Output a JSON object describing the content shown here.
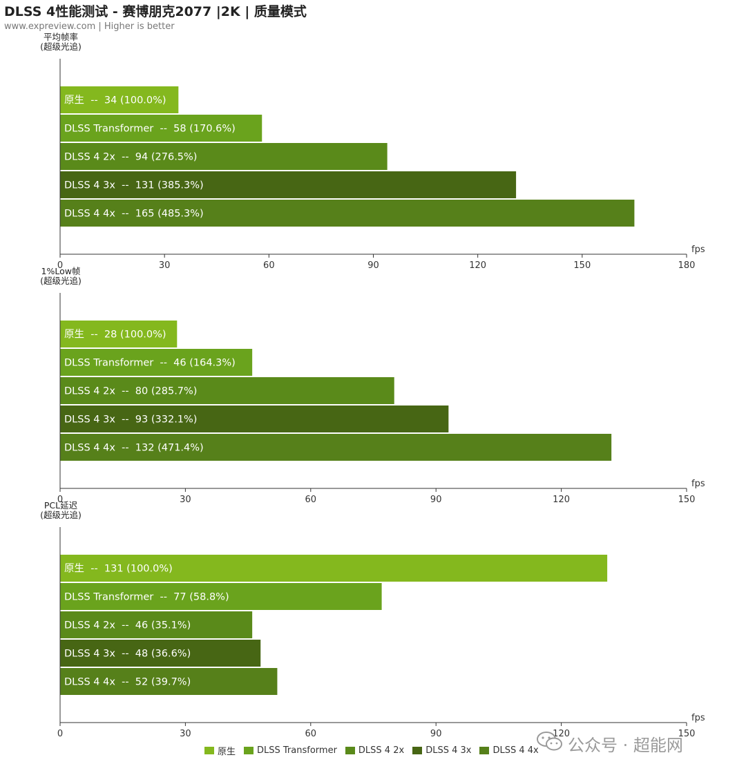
{
  "title": "DLSS 4性能测试 - 赛博朋克2077 |2K | 质量模式",
  "subtitle": "www.expreview.com | Higher is better",
  "colors": [
    "#84b81e",
    "#6aa31d",
    "#5a8a1a",
    "#476614",
    "#56801a"
  ],
  "legend": [
    "原生",
    "DLSS Transformer",
    "DLSS 4 2x",
    "DLSS 4 3x",
    "DLSS 4 4x"
  ],
  "watermark": {
    "brand": "公众号 · 超能网"
  },
  "chart_data": [
    {
      "type": "bar",
      "orientation": "horizontal",
      "ylabel": "平均帧率\n(超级光追)",
      "xlabel": "fps",
      "xlim": [
        0,
        180
      ],
      "xticks": [
        0,
        30,
        60,
        90,
        120,
        150,
        180
      ],
      "categories": [
        "原生",
        "DLSS Transformer",
        "DLSS 4 2x",
        "DLSS 4 3x",
        "DLSS 4 4x"
      ],
      "values": [
        34,
        58,
        94,
        131,
        165
      ],
      "labels": [
        "原生  --  34 (100.0%)",
        "DLSS Transformer  --  58 (170.6%)",
        "DLSS 4 2x  --  94 (276.5%)",
        "DLSS 4 3x  --  131 (385.3%)",
        "DLSS 4 4x  --  165 (485.3%)"
      ]
    },
    {
      "type": "bar",
      "orientation": "horizontal",
      "ylabel": "1%Low帧\n(超级光追)",
      "xlabel": "fps",
      "xlim": [
        0,
        150
      ],
      "xticks": [
        0,
        30,
        60,
        90,
        120,
        150
      ],
      "categories": [
        "原生",
        "DLSS Transformer",
        "DLSS 4 2x",
        "DLSS 4 3x",
        "DLSS 4 4x"
      ],
      "values": [
        28,
        46,
        80,
        93,
        132
      ],
      "labels": [
        "原生  --  28 (100.0%)",
        "DLSS Transformer  --  46 (164.3%)",
        "DLSS 4 2x  --  80 (285.7%)",
        "DLSS 4 3x  --  93 (332.1%)",
        "DLSS 4 4x  --  132 (471.4%)"
      ]
    },
    {
      "type": "bar",
      "orientation": "horizontal",
      "ylabel": "PCL延迟\n(超级光追)",
      "xlabel": "fps",
      "xlim": [
        0,
        150
      ],
      "xticks": [
        0,
        30,
        60,
        90,
        120,
        150
      ],
      "categories": [
        "原生",
        "DLSS Transformer",
        "DLSS 4 2x",
        "DLSS 4 3x",
        "DLSS 4 4x"
      ],
      "values": [
        131,
        77,
        46,
        48,
        52
      ],
      "labels": [
        "原生  --  131 (100.0%)",
        "DLSS Transformer  --  77 (58.8%)",
        "DLSS 4 2x  --  46 (35.1%)",
        "DLSS 4 3x  --  48 (36.6%)",
        "DLSS 4 4x  --  52 (39.7%)"
      ]
    }
  ]
}
